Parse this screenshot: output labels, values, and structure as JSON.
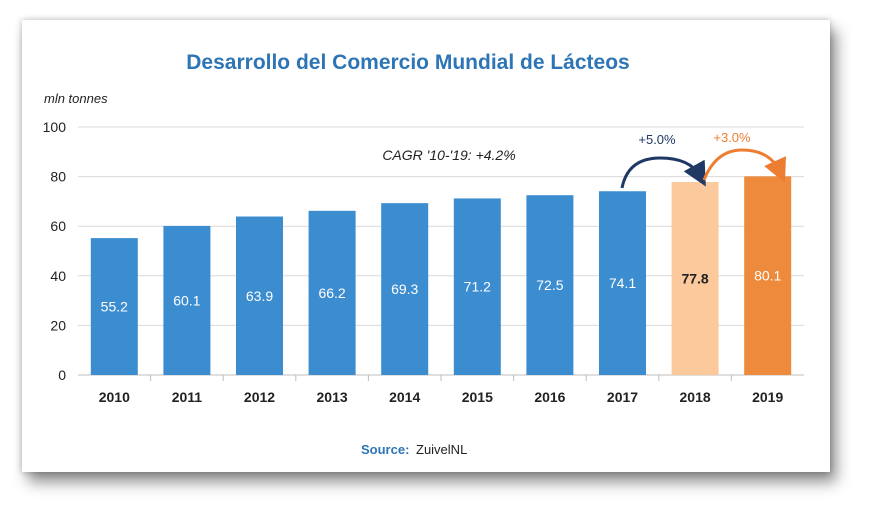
{
  "chart_data": {
    "type": "bar",
    "title": "Desarrollo del Comercio Mundial de Lácteos",
    "ylabel": "mln tonnes",
    "ylim": [
      0,
      100
    ],
    "yticks": [
      0,
      20,
      40,
      60,
      80,
      100
    ],
    "categories": [
      "2010",
      "2011",
      "2012",
      "2013",
      "2014",
      "2015",
      "2016",
      "2017",
      "2018",
      "2019"
    ],
    "values": [
      55.2,
      60.1,
      63.9,
      66.2,
      69.3,
      71.2,
      72.5,
      74.1,
      77.8,
      80.1
    ],
    "value_labels": [
      "55.2",
      "60.1",
      "63.9",
      "66.2",
      "69.3",
      "71.2",
      "72.5",
      "74.1",
      "77.8",
      "80.1"
    ],
    "bar_colors": [
      "#3b8dd0",
      "#3b8dd0",
      "#3b8dd0",
      "#3b8dd0",
      "#3b8dd0",
      "#3b8dd0",
      "#3b8dd0",
      "#3b8dd0",
      "#fbc99b",
      "#ed8a3b"
    ],
    "grid": true,
    "annotations": {
      "cagr": "CAGR '10-'19: +4.2%",
      "growth_2018": "+5.0%",
      "growth_2019": "+3.0%"
    },
    "source_label": "Source:",
    "source_value": "ZuivelNL"
  },
  "colors": {
    "title": "#2e75b6",
    "arrow_2018": "#1f3864",
    "arrow_2019": "#ed7d31"
  }
}
